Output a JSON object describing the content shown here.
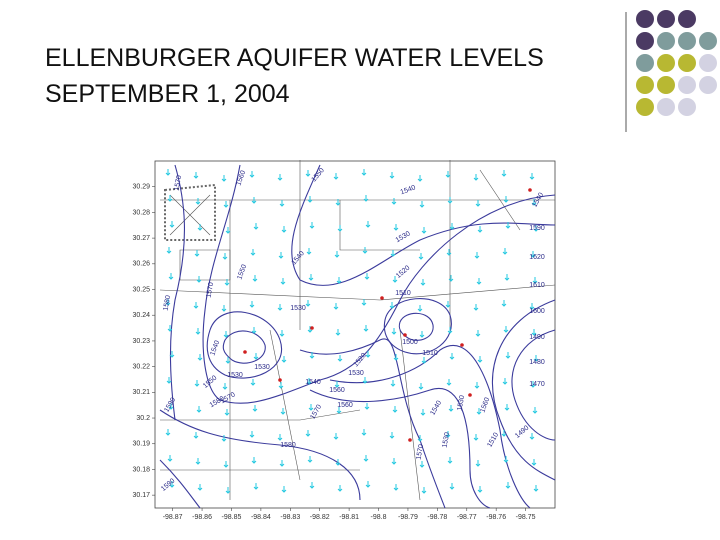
{
  "header": {
    "title_lines": [
      "ELLENBURGER AQUIFER WATER LEVELS",
      "SEPTEMBER 1, 2004"
    ]
  },
  "map": {
    "ylim": [
      30.165,
      30.3
    ],
    "yticks": [
      30.29,
      30.28,
      30.27,
      30.26,
      30.25,
      30.24,
      30.23,
      30.22,
      30.21,
      30.2,
      30.19,
      30.18,
      30.17
    ],
    "xlim": [
      -98.876,
      -98.74
    ],
    "xticks": [
      -98.87,
      -98.86,
      -98.85,
      -98.84,
      -98.83,
      -98.82,
      -98.81,
      -98.8,
      -98.79,
      -98.78,
      -98.77,
      -98.76,
      -98.75
    ],
    "contour_labels": [
      1570,
      1560,
      1550,
      1540,
      1540,
      1530,
      1590,
      1520,
      1620,
      1540,
      1550,
      1570,
      1580,
      1510,
      1610,
      1530,
      1600,
      1490,
      1500,
      1510,
      1540,
      1520,
      1480,
      1530,
      1530,
      1530,
      1550,
      1540,
      1560,
      1470,
      1560,
      1570,
      1580,
      1590,
      1570,
      1540,
      1530,
      1560,
      1490,
      1580,
      1510,
      1530,
      1570,
      1590
    ]
  }
}
